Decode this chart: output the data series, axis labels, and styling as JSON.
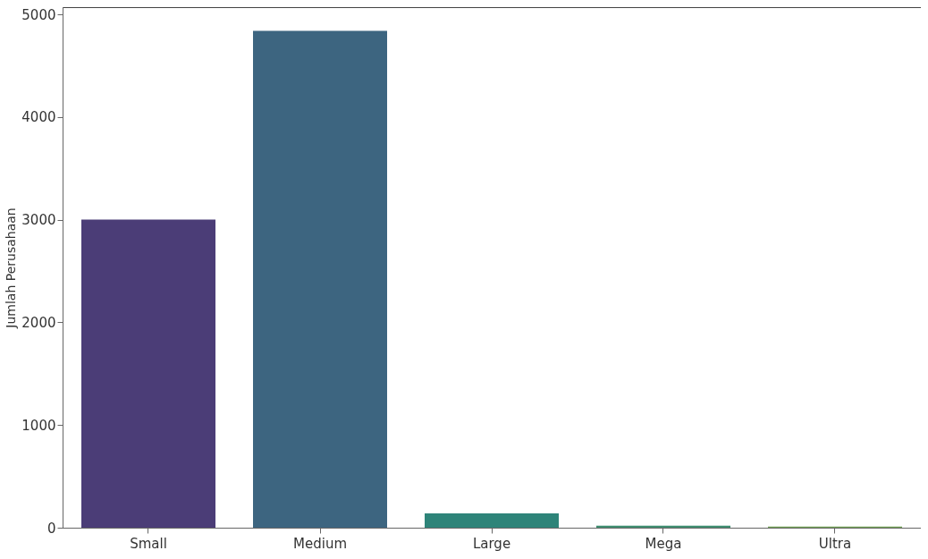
{
  "chart_data": {
    "type": "bar",
    "ylabel": "Jumlah Perusahaan",
    "categories": [
      "Small",
      "Medium",
      "Large",
      "Mega",
      "Ultra"
    ],
    "values": [
      3000,
      4840,
      140,
      20,
      10
    ],
    "colors": [
      "#4b3d77",
      "#3d6580",
      "#2e8479",
      "#3f8d70",
      "#6e9e52"
    ],
    "ylim": [
      0,
      5070
    ],
    "yticks": [
      0,
      1000,
      2000,
      3000,
      4000,
      5000
    ],
    "grid": false
  }
}
